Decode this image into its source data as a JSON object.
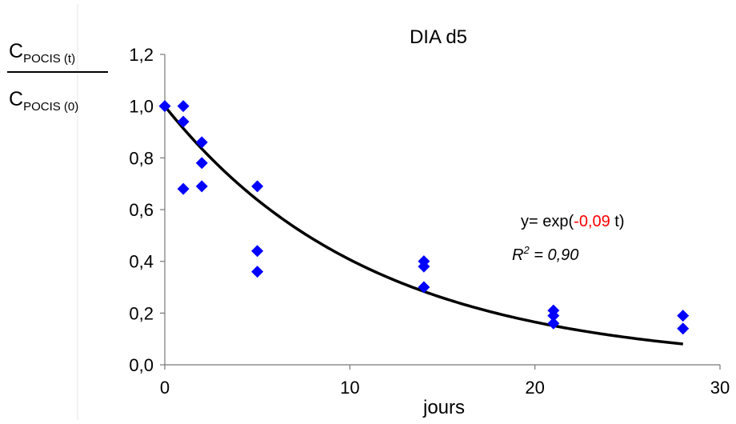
{
  "chart_data": {
    "type": "scatter",
    "title": "DIA d5",
    "xlabel": "jours",
    "ylabel": {
      "numerator_main": "C",
      "numerator_sub": "POCIS (t)",
      "denominator_main": "C",
      "denominator_sub": "POCIS (0)"
    },
    "xlim": [
      0,
      30
    ],
    "ylim": [
      0.0,
      1.2
    ],
    "x_ticks": [
      "0",
      "10",
      "20",
      "30"
    ],
    "y_ticks": [
      "0,0",
      "0,2",
      "0,4",
      "0,6",
      "0,8",
      "1,0",
      "1,2"
    ],
    "grid": false,
    "series": [
      {
        "marker": "diamond",
        "color": "#0000ff",
        "points": [
          {
            "x": 0,
            "y": 1.0
          },
          {
            "x": 1,
            "y": 1.0
          },
          {
            "x": 1,
            "y": 0.94
          },
          {
            "x": 1,
            "y": 0.68
          },
          {
            "x": 2,
            "y": 0.86
          },
          {
            "x": 2,
            "y": 0.78
          },
          {
            "x": 2,
            "y": 0.69
          },
          {
            "x": 5,
            "y": 0.69
          },
          {
            "x": 5,
            "y": 0.44
          },
          {
            "x": 5,
            "y": 0.36
          },
          {
            "x": 14,
            "y": 0.4
          },
          {
            "x": 14,
            "y": 0.38
          },
          {
            "x": 14,
            "y": 0.3
          },
          {
            "x": 21,
            "y": 0.21
          },
          {
            "x": 21,
            "y": 0.19
          },
          {
            "x": 21,
            "y": 0.16
          },
          {
            "x": 28,
            "y": 0.19
          },
          {
            "x": 28,
            "y": 0.14
          }
        ]
      }
    ],
    "fit": {
      "type": "exponential",
      "k": -0.09,
      "color": "#000000",
      "x_range": [
        0,
        28
      ]
    },
    "equation": {
      "prefix": "y= exp(",
      "coef": "-0,09",
      "suffix": " t)",
      "coef_color": "#ff0000",
      "r2_label": "R",
      "r2_sup": "2",
      "r2_value": " = 0,90"
    }
  }
}
